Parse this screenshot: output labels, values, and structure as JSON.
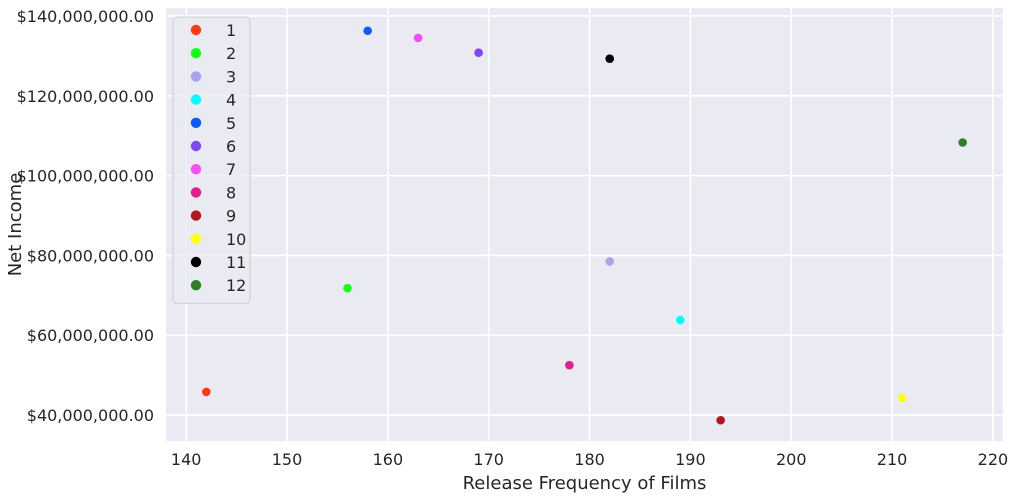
{
  "chart_data": {
    "type": "scatter",
    "xlabel": "Release Frequency of Films",
    "ylabel": "Net Income",
    "xlim": [
      138,
      221
    ],
    "ylim": [
      33500000,
      142000000
    ],
    "x_ticks": [
      140,
      150,
      160,
      170,
      180,
      190,
      200,
      210,
      220
    ],
    "x_tick_labels": [
      "140",
      "150",
      "160",
      "170",
      "180",
      "190",
      "200",
      "210",
      "220"
    ],
    "y_ticks": [
      40000000,
      60000000,
      80000000,
      100000000,
      120000000,
      140000000
    ],
    "y_tick_labels": [
      "$40,000,000.00",
      "$60,000,000.00",
      "$80,000,000.00",
      "$100,000,000.00",
      "$120,000,000.00",
      "$140,000,000.00"
    ],
    "grid": true,
    "legend_position": "top-left",
    "background_color": "#eaeaf2",
    "grid_color": "#ffffff",
    "series": [
      {
        "name": "1",
        "color": "#ff3b14",
        "x": 142,
        "y": 45800000
      },
      {
        "name": "2",
        "color": "#14ff14",
        "x": 156,
        "y": 71800000
      },
      {
        "name": "3",
        "color": "#aba2ef",
        "x": 182,
        "y": 78500000
      },
      {
        "name": "4",
        "color": "#00ffff",
        "x": 189,
        "y": 63800000
      },
      {
        "name": "5",
        "color": "#0a5aff",
        "x": 158,
        "y": 136300000
      },
      {
        "name": "6",
        "color": "#8147f5",
        "x": 169,
        "y": 130800000
      },
      {
        "name": "7",
        "color": "#f54ef5",
        "x": 163,
        "y": 134500000
      },
      {
        "name": "8",
        "color": "#e01e8e",
        "x": 178,
        "y": 52500000
      },
      {
        "name": "9",
        "color": "#b01522",
        "x": 193,
        "y": 38700000
      },
      {
        "name": "10",
        "color": "#ffff14",
        "x": 211,
        "y": 44300000
      },
      {
        "name": "11",
        "color": "#000000",
        "x": 182,
        "y": 129300000
      },
      {
        "name": "12",
        "color": "#2c7f22",
        "x": 217,
        "y": 108300000
      }
    ]
  }
}
